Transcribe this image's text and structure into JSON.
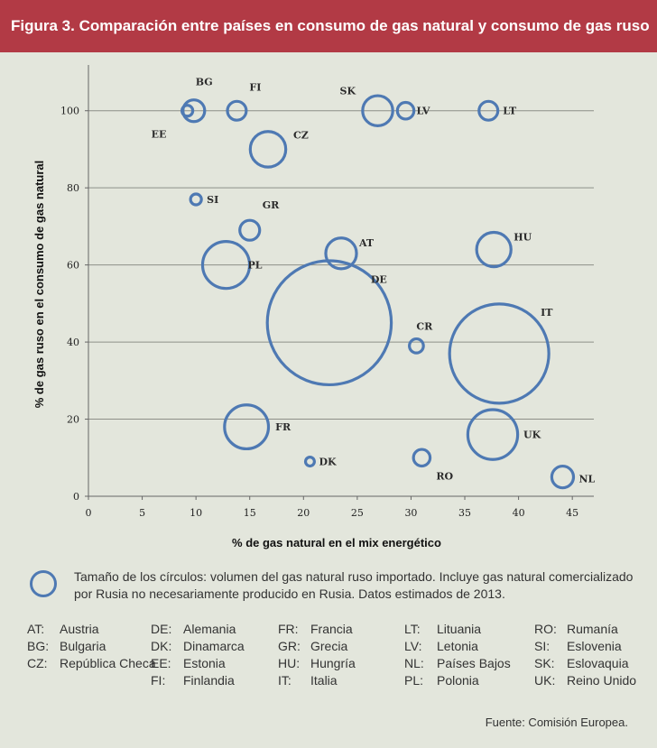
{
  "header": {
    "title": "Figura 3. Comparación entre países en consumo de gas natural y consumo de gas ruso"
  },
  "chart_data": {
    "type": "scatter",
    "xlabel": "% de gas natural en el mix energético",
    "ylabel": "% de gas ruso en el consumo de gas natural",
    "xlim": [
      0,
      47
    ],
    "ylim": [
      0,
      110
    ],
    "xticks": [
      "0",
      "5",
      "10",
      "15",
      "20",
      "25",
      "30",
      "35",
      "40",
      "45"
    ],
    "yticks": [
      "0",
      "20",
      "40",
      "60",
      "80",
      "100"
    ],
    "grid": "horizontal",
    "points": [
      {
        "label": "BG",
        "x": 9.8,
        "y": 100,
        "size": 1.2
      },
      {
        "label": "EE",
        "x": 9.2,
        "y": 100,
        "size": 0.3
      },
      {
        "label": "FI",
        "x": 13.8,
        "y": 100,
        "size": 0.9
      },
      {
        "label": "CZ",
        "x": 16.7,
        "y": 90,
        "size": 3.2
      },
      {
        "label": "SK",
        "x": 26.9,
        "y": 100,
        "size": 2.3
      },
      {
        "label": "LV",
        "x": 29.5,
        "y": 100,
        "size": 0.7
      },
      {
        "label": "LT",
        "x": 37.2,
        "y": 100,
        "size": 0.9
      },
      {
        "label": "SI",
        "x": 10,
        "y": 77,
        "size": 0.3
      },
      {
        "label": "GR",
        "x": 15,
        "y": 69,
        "size": 1.0
      },
      {
        "label": "PL",
        "x": 12.8,
        "y": 60,
        "size": 5.6
      },
      {
        "label": "AT",
        "x": 23.5,
        "y": 63,
        "size": 2.4
      },
      {
        "label": "HU",
        "x": 37.7,
        "y": 64,
        "size": 3.0
      },
      {
        "label": "DE",
        "x": 22.4,
        "y": 45,
        "size": 39
      },
      {
        "label": "CR",
        "x": 30.5,
        "y": 39,
        "size": 0.5
      },
      {
        "label": "IT",
        "x": 38.2,
        "y": 37,
        "size": 25
      },
      {
        "label": "FR",
        "x": 14.7,
        "y": 18,
        "size": 4.9
      },
      {
        "label": "UK",
        "x": 37.6,
        "y": 16,
        "size": 6.3
      },
      {
        "label": "DK",
        "x": 20.6,
        "y": 9,
        "size": 0.2
      },
      {
        "label": "RO",
        "x": 31,
        "y": 10,
        "size": 0.7
      },
      {
        "label": "NL",
        "x": 44.1,
        "y": 5,
        "size": 1.2
      }
    ]
  },
  "note": "Tamaño de los círculos: volumen del gas natural ruso importado. Incluye gas natural comercializado por Rusia no necesariamente producido en Rusia. Datos estimados de 2013.",
  "legend": [
    [
      {
        "code": "AT:",
        "name": "Austria"
      },
      {
        "code": "BG:",
        "name": "Bulgaria"
      },
      {
        "code": "CZ:",
        "name": "República Checa"
      }
    ],
    [
      {
        "code": "DE:",
        "name": "Alemania"
      },
      {
        "code": "DK:",
        "name": "Dinamarca"
      },
      {
        "code": "EE:",
        "name": "Estonia"
      },
      {
        "code": "FI:",
        "name": "Finlandia"
      }
    ],
    [
      {
        "code": "FR:",
        "name": "Francia"
      },
      {
        "code": "GR:",
        "name": "Grecia"
      },
      {
        "code": "HU:",
        "name": "Hungría"
      },
      {
        "code": "IT:",
        "name": "Italia"
      }
    ],
    [
      {
        "code": "LT:",
        "name": "Lituania"
      },
      {
        "code": "LV:",
        "name": "Letonia"
      },
      {
        "code": "NL:",
        "name": "Países Bajos"
      },
      {
        "code": "PL:",
        "name": "Polonia"
      }
    ],
    [
      {
        "code": "RO:",
        "name": "Rumanía"
      },
      {
        "code": "SI:",
        "name": "Eslovenia"
      },
      {
        "code": "SK:",
        "name": "Eslovaquia"
      },
      {
        "code": "UK:",
        "name": "Reino Unido"
      }
    ]
  ],
  "source": "Fuente: Comisión Europea.",
  "colors": {
    "header": "#b23a45",
    "bubble": "#4e79b3",
    "background": "#e3e6dc"
  }
}
